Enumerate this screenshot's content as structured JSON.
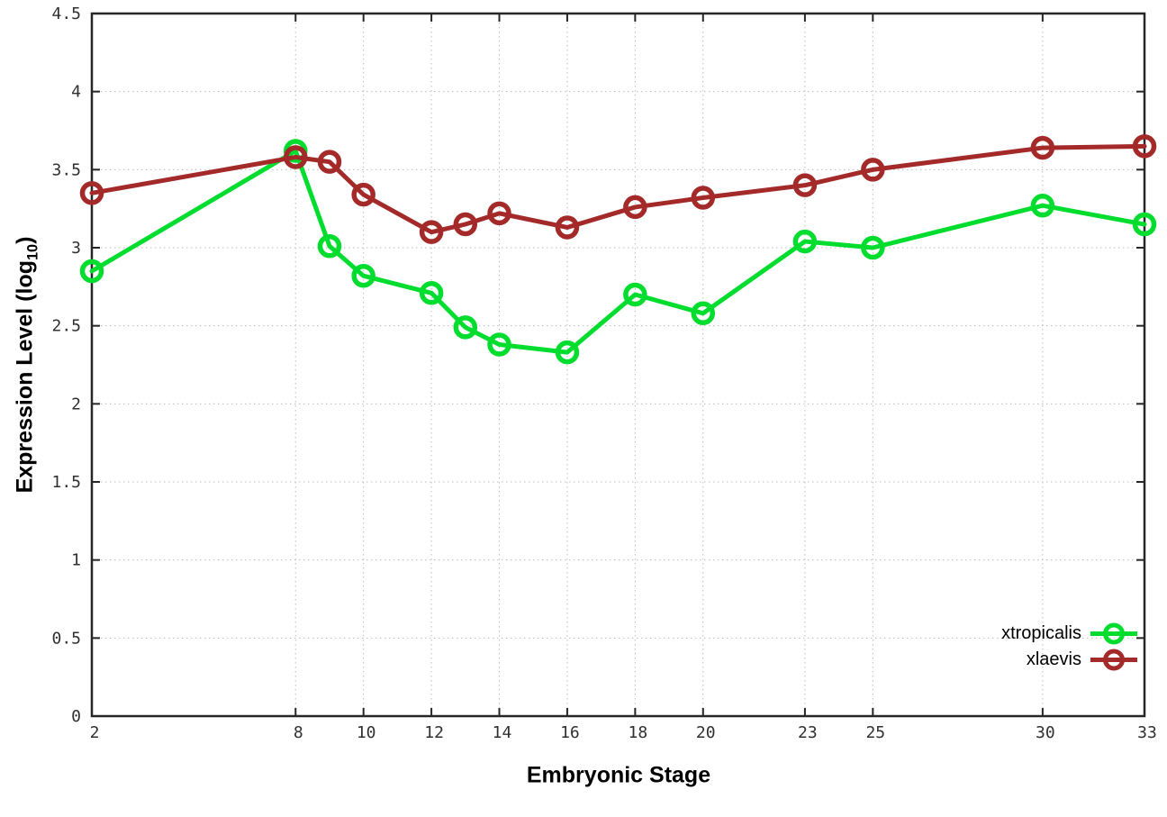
{
  "chart_data": {
    "type": "line",
    "title": "",
    "xlabel": "Embryonic Stage",
    "ylabel": "Expression Level (log10)",
    "ylabel_parts": {
      "prefix": "Expression Level (log",
      "sub": "10",
      "suffix": ")"
    },
    "x": [
      2,
      8,
      9,
      10,
      12,
      13,
      14,
      16,
      18,
      20,
      23,
      25,
      30,
      33
    ],
    "series": [
      {
        "name": "xtropicalis",
        "color": "#00dd2e",
        "marker": "open-circle",
        "values": [
          2.85,
          3.62,
          3.01,
          2.82,
          2.71,
          2.49,
          2.38,
          2.33,
          2.7,
          2.58,
          3.04,
          3.0,
          3.27,
          3.15
        ]
      },
      {
        "name": "xlaevis",
        "color": "#a42a2a",
        "marker": "open-circle",
        "values": [
          3.35,
          3.58,
          3.55,
          3.34,
          3.1,
          3.15,
          3.22,
          3.13,
          3.26,
          3.32,
          3.4,
          3.5,
          3.64,
          3.65
        ]
      }
    ],
    "xlim": [
      2,
      33
    ],
    "ylim": [
      0,
      4.5
    ],
    "xticks": [
      {
        "v": 2,
        "label": "2"
      },
      {
        "v": 8,
        "label": "8"
      },
      {
        "v": 10,
        "label": "10"
      },
      {
        "v": 12,
        "label": "12"
      },
      {
        "v": 14,
        "label": "14"
      },
      {
        "v": 16,
        "label": "16"
      },
      {
        "v": 18,
        "label": "18"
      },
      {
        "v": 20,
        "label": "20"
      },
      {
        "v": 23,
        "label": "23"
      },
      {
        "v": 25,
        "label": "25"
      },
      {
        "v": 30,
        "label": "30"
      },
      {
        "v": 33,
        "label": "33"
      }
    ],
    "yticks": [
      {
        "v": 0,
        "label": "0"
      },
      {
        "v": 0.5,
        "label": "0.5"
      },
      {
        "v": 1,
        "label": "1"
      },
      {
        "v": 1.5,
        "label": "1.5"
      },
      {
        "v": 2,
        "label": "2"
      },
      {
        "v": 2.5,
        "label": "2.5"
      },
      {
        "v": 3,
        "label": "3"
      },
      {
        "v": 3.5,
        "label": "3.5"
      },
      {
        "v": 4,
        "label": "4"
      },
      {
        "v": 4.5,
        "label": "4.5"
      }
    ],
    "grid": true,
    "legend_position": "bottom-right",
    "colors": {
      "background": "#ffffff",
      "border": "#262626",
      "grid": "#bdbdbd",
      "tick_text": "#303030"
    }
  }
}
